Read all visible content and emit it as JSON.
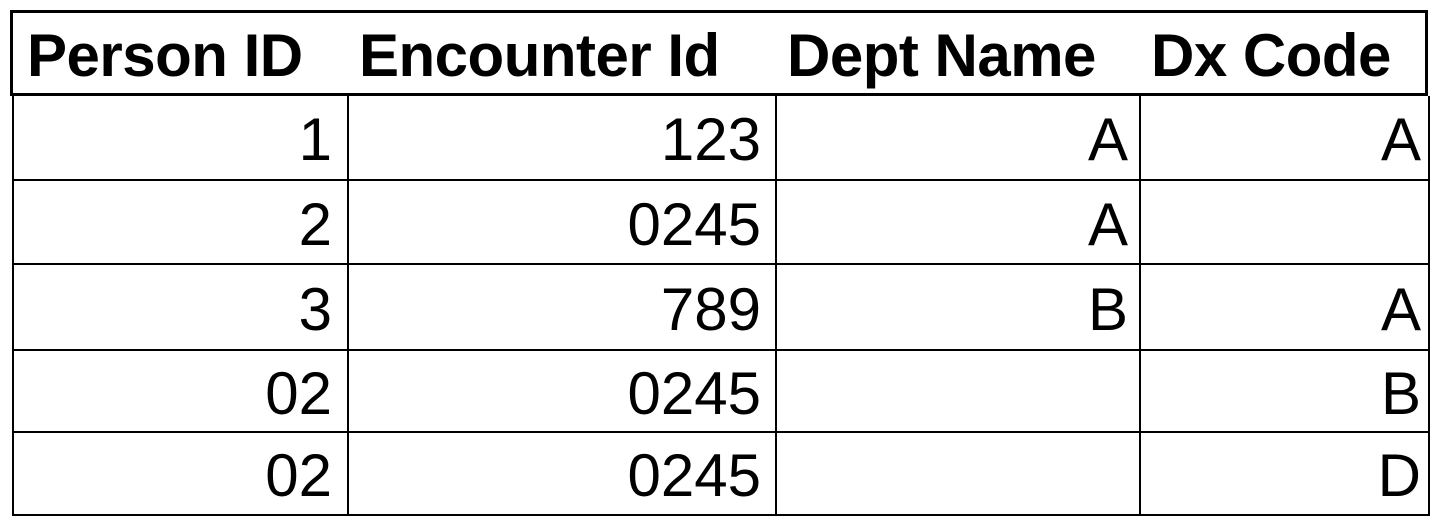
{
  "table": {
    "headers": [
      "Person ID",
      "Encounter Id",
      "Dept Name",
      "Dx Code"
    ],
    "rows": [
      [
        "1",
        "123",
        "A",
        "A"
      ],
      [
        "2",
        "0245",
        "A",
        ""
      ],
      [
        "3",
        "789",
        "B",
        "A"
      ],
      [
        "02",
        "0245",
        "",
        "B"
      ],
      [
        "02",
        "0245",
        "",
        "D"
      ]
    ]
  }
}
